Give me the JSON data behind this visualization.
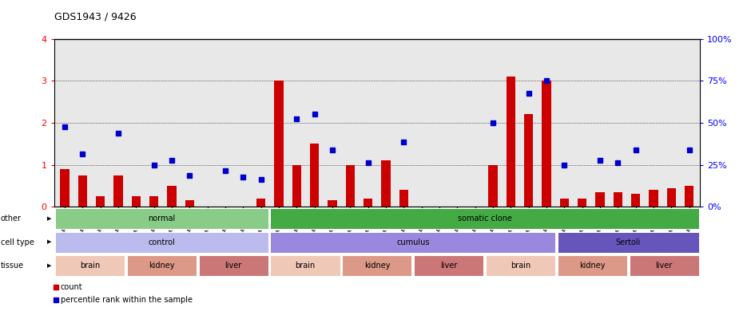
{
  "title": "GDS1943 / 9426",
  "samples": [
    "GSM69825",
    "GSM69826",
    "GSM69827",
    "GSM69828",
    "GSM69801",
    "GSM69802",
    "GSM69803",
    "GSM69804",
    "GSM69813",
    "GSM69814",
    "GSM69815",
    "GSM69816",
    "GSM69833",
    "GSM69834",
    "GSM69835",
    "GSM69836",
    "GSM69809",
    "GSM69810",
    "GSM69811",
    "GSM69812",
    "GSM69821",
    "GSM69822",
    "GSM69823",
    "GSM69824",
    "GSM69829",
    "GSM69830",
    "GSM69831",
    "GSM69832",
    "GSM69805",
    "GSM69806",
    "GSM69807",
    "GSM69808",
    "GSM69817",
    "GSM69818",
    "GSM69819",
    "GSM69820"
  ],
  "counts": [
    0.9,
    0.75,
    0.25,
    0.75,
    0.25,
    0.25,
    0.5,
    0.15,
    0.0,
    0.0,
    0.0,
    0.2,
    3.0,
    1.0,
    1.5,
    0.15,
    1.0,
    0.2,
    1.1,
    0.4,
    0.0,
    0.0,
    0.0,
    0.0,
    1.0,
    3.1,
    2.2,
    3.0,
    0.2,
    0.2,
    0.35,
    0.35,
    0.3,
    0.4,
    0.45,
    0.5
  ],
  "percentile": [
    1.9,
    1.25,
    null,
    1.75,
    null,
    1.0,
    1.1,
    0.75,
    null,
    0.85,
    0.7,
    0.65,
    null,
    2.1,
    2.2,
    1.35,
    null,
    1.05,
    null,
    1.55,
    null,
    null,
    null,
    null,
    2.0,
    null,
    2.7,
    3.0,
    1.0,
    null,
    1.1,
    1.05,
    1.35,
    null,
    null,
    1.35
  ],
  "bar_color": "#cc0000",
  "dot_color": "#0000cc",
  "bg_color": "#e8e8e8",
  "annotation_rows": [
    {
      "label": "other",
      "segments": [
        {
          "text": "normal",
          "start": 0,
          "end": 12,
          "color": "#88cc88"
        },
        {
          "text": "somatic clone",
          "start": 12,
          "end": 36,
          "color": "#44aa44"
        }
      ]
    },
    {
      "label": "cell type",
      "segments": [
        {
          "text": "control",
          "start": 0,
          "end": 12,
          "color": "#bbbbee"
        },
        {
          "text": "cumulus",
          "start": 12,
          "end": 28,
          "color": "#9988dd"
        },
        {
          "text": "Sertoli",
          "start": 28,
          "end": 36,
          "color": "#6655bb"
        }
      ]
    },
    {
      "label": "tissue",
      "segments": [
        {
          "text": "brain",
          "start": 0,
          "end": 4,
          "color": "#f0c8b8"
        },
        {
          "text": "kidney",
          "start": 4,
          "end": 8,
          "color": "#dd9988"
        },
        {
          "text": "liver",
          "start": 8,
          "end": 12,
          "color": "#cc7777"
        },
        {
          "text": "brain",
          "start": 12,
          "end": 16,
          "color": "#f0c8b8"
        },
        {
          "text": "kidney",
          "start": 16,
          "end": 20,
          "color": "#dd9988"
        },
        {
          "text": "liver",
          "start": 20,
          "end": 24,
          "color": "#cc7777"
        },
        {
          "text": "brain",
          "start": 24,
          "end": 28,
          "color": "#f0c8b8"
        },
        {
          "text": "kidney",
          "start": 28,
          "end": 32,
          "color": "#dd9988"
        },
        {
          "text": "liver",
          "start": 32,
          "end": 36,
          "color": "#cc7777"
        }
      ]
    }
  ],
  "legend": [
    {
      "color": "#cc0000",
      "label": "count"
    },
    {
      "color": "#0000cc",
      "label": "percentile rank within the sample"
    }
  ]
}
